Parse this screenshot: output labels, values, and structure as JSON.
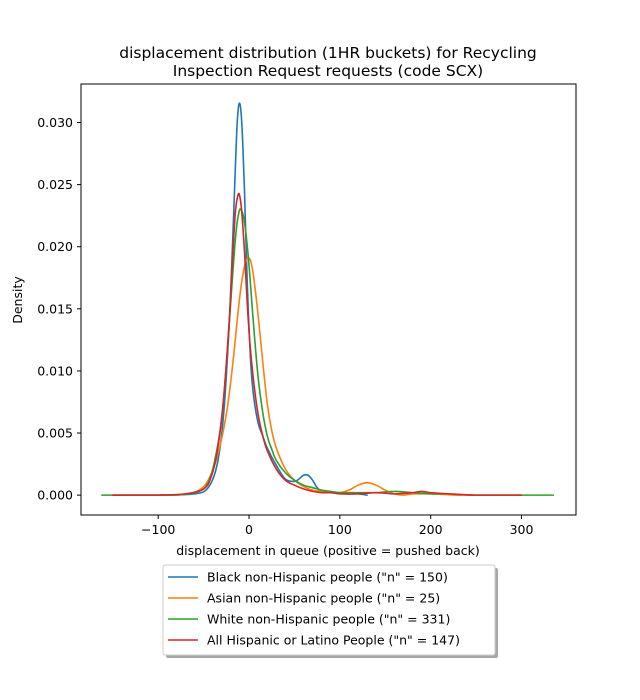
{
  "chart_data": {
    "type": "line",
    "title_line1": "displacement distribution (1HR buckets) for Recycling",
    "title_line2": "Inspection Request requests (code SCX)",
    "xlabel": "displacement in queue (positive = pushed back)",
    "ylabel": "Density",
    "xlim": [
      -185,
      360
    ],
    "ylim": [
      -0.0016,
      0.0331
    ],
    "xticks": [
      -100,
      0,
      100,
      200,
      300
    ],
    "xtick_labels": [
      "−100",
      "0",
      "100",
      "200",
      "300"
    ],
    "yticks": [
      0.0,
      0.005,
      0.01,
      0.015,
      0.02,
      0.025,
      0.03
    ],
    "ytick_labels": [
      "0.000",
      "0.005",
      "0.010",
      "0.015",
      "0.020",
      "0.025",
      "0.030"
    ],
    "grid": false,
    "legend_position": "below plot, centered",
    "series": [
      {
        "name": "Black non-Hispanic people (\"n\" = 150)",
        "color": "#1f77b4",
        "x": [
          -150,
          -100,
          -60,
          -45,
          -35,
          -28,
          -22,
          -18,
          -15,
          -13,
          -11,
          -9,
          -7,
          -5,
          -3,
          -1,
          2,
          5,
          10,
          15,
          20,
          30,
          40,
          50,
          55,
          60,
          65,
          70,
          75,
          80,
          90,
          100,
          110,
          120,
          130
        ],
        "y": [
          0.0,
          0.0,
          0.0001,
          0.0006,
          0.0025,
          0.0065,
          0.0135,
          0.0205,
          0.0265,
          0.03,
          0.0315,
          0.031,
          0.0285,
          0.0245,
          0.0195,
          0.0152,
          0.0105,
          0.008,
          0.0058,
          0.0048,
          0.0038,
          0.0024,
          0.0013,
          0.0011,
          0.0013,
          0.0016,
          0.0016,
          0.0012,
          0.0006,
          0.0003,
          0.0002,
          0.0002,
          0.0001,
          0.0001,
          0.0
        ]
      },
      {
        "name": "Asian non-Hispanic people (\"n\" = 25)",
        "color": "#ff7f0e",
        "x": [
          -150,
          -100,
          -70,
          -55,
          -45,
          -35,
          -25,
          -18,
          -12,
          -8,
          -4,
          -1,
          2,
          5,
          10,
          15,
          20,
          25,
          30,
          40,
          50,
          60,
          70,
          80,
          90,
          100,
          110,
          120,
          130,
          140,
          150,
          160,
          170,
          180,
          190,
          200,
          230,
          260,
          300
        ],
        "y": [
          0.0,
          0.0,
          0.0001,
          0.0004,
          0.0012,
          0.0031,
          0.0065,
          0.0105,
          0.0148,
          0.0172,
          0.0187,
          0.0191,
          0.0188,
          0.0176,
          0.0145,
          0.0108,
          0.0074,
          0.0052,
          0.0038,
          0.0021,
          0.0012,
          0.0007,
          0.0004,
          0.0003,
          0.0002,
          0.0002,
          0.0004,
          0.0008,
          0.001,
          0.0008,
          0.0004,
          0.0001,
          0.0,
          0.0001,
          0.0001,
          0.0001,
          0.0,
          0.0,
          0.0
        ]
      },
      {
        "name": "White non-Hispanic people (\"n\" = 331)",
        "color": "#2ca02c",
        "x": [
          -162,
          -120,
          -80,
          -55,
          -45,
          -38,
          -30,
          -24,
          -18,
          -14,
          -11,
          -9,
          -6,
          -3,
          0,
          3,
          6,
          10,
          15,
          20,
          25,
          30,
          40,
          50,
          60,
          70,
          80,
          90,
          100,
          120,
          140,
          160,
          180,
          200,
          220,
          250,
          300,
          335
        ],
        "y": [
          0.0,
          0.0,
          0.0,
          0.0003,
          0.001,
          0.0027,
          0.0062,
          0.0115,
          0.0178,
          0.0214,
          0.0228,
          0.023,
          0.0224,
          0.0208,
          0.0185,
          0.0156,
          0.0128,
          0.0095,
          0.0067,
          0.0048,
          0.0037,
          0.0028,
          0.0018,
          0.0012,
          0.0008,
          0.0006,
          0.0004,
          0.0003,
          0.0002,
          0.0002,
          0.0002,
          0.0003,
          0.0002,
          0.0001,
          0.0001,
          0.0,
          0.0,
          0.0
        ]
      },
      {
        "name": "All Hispanic or Latino People (\"n\" = 147)",
        "color": "#d62728",
        "x": [
          -150,
          -100,
          -70,
          -50,
          -42,
          -35,
          -28,
          -22,
          -18,
          -15,
          -12,
          -10,
          -8,
          -5,
          -2,
          1,
          5,
          10,
          15,
          20,
          30,
          40,
          50,
          60,
          70,
          80,
          90,
          100,
          120,
          140,
          160,
          180,
          190,
          200,
          220,
          250,
          300
        ],
        "y": [
          0.0,
          0.0,
          0.0001,
          0.0005,
          0.0014,
          0.0035,
          0.0078,
          0.0138,
          0.0192,
          0.0228,
          0.0242,
          0.024,
          0.0228,
          0.0196,
          0.0155,
          0.0122,
          0.0092,
          0.0065,
          0.0048,
          0.0036,
          0.0021,
          0.0012,
          0.0008,
          0.0005,
          0.0003,
          0.0002,
          0.0002,
          0.0001,
          0.0001,
          0.0002,
          0.0001,
          0.0002,
          0.0003,
          0.0002,
          0.0001,
          0.0,
          0.0
        ]
      }
    ]
  }
}
